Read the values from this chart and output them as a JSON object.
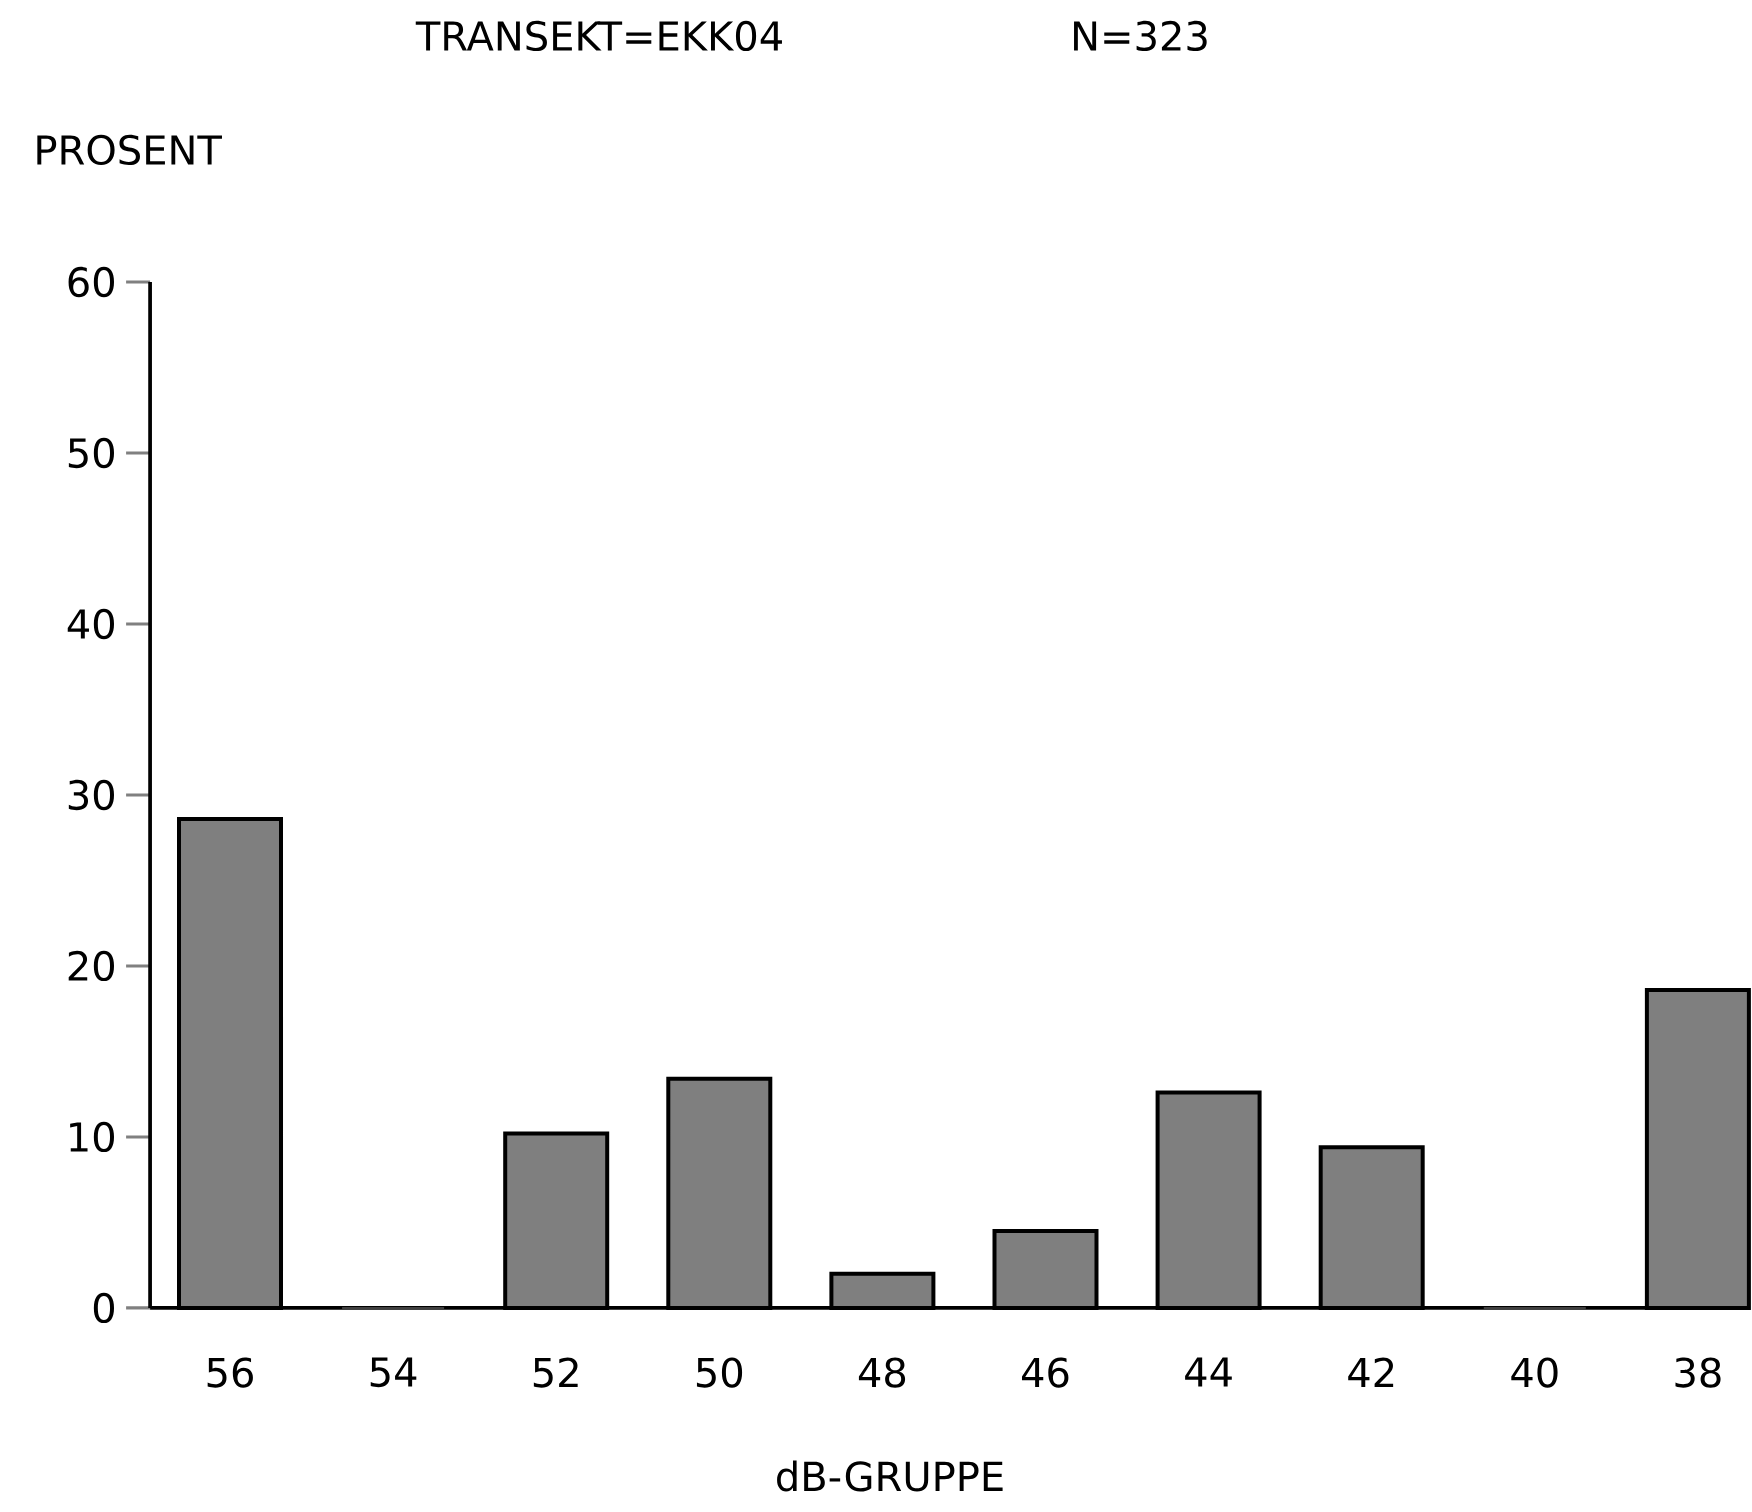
{
  "chart_data": {
    "type": "bar",
    "title": "TRANSEKT=EKK04",
    "subtitle": "N=323",
    "ylabel": "PROSENT",
    "xlabel": "dB-GRUPPE",
    "categories": [
      "56",
      "54",
      "52",
      "50",
      "48",
      "46",
      "44",
      "42",
      "40",
      "38"
    ],
    "values": [
      28.6,
      0,
      10.2,
      13.4,
      2.0,
      4.5,
      12.6,
      9.4,
      0,
      18.6
    ],
    "color": "#7f7f7f",
    "ylim": [
      0,
      60
    ],
    "yticks": [
      0,
      10,
      20,
      30,
      40,
      50,
      60
    ],
    "grid": false,
    "legend": false
  }
}
